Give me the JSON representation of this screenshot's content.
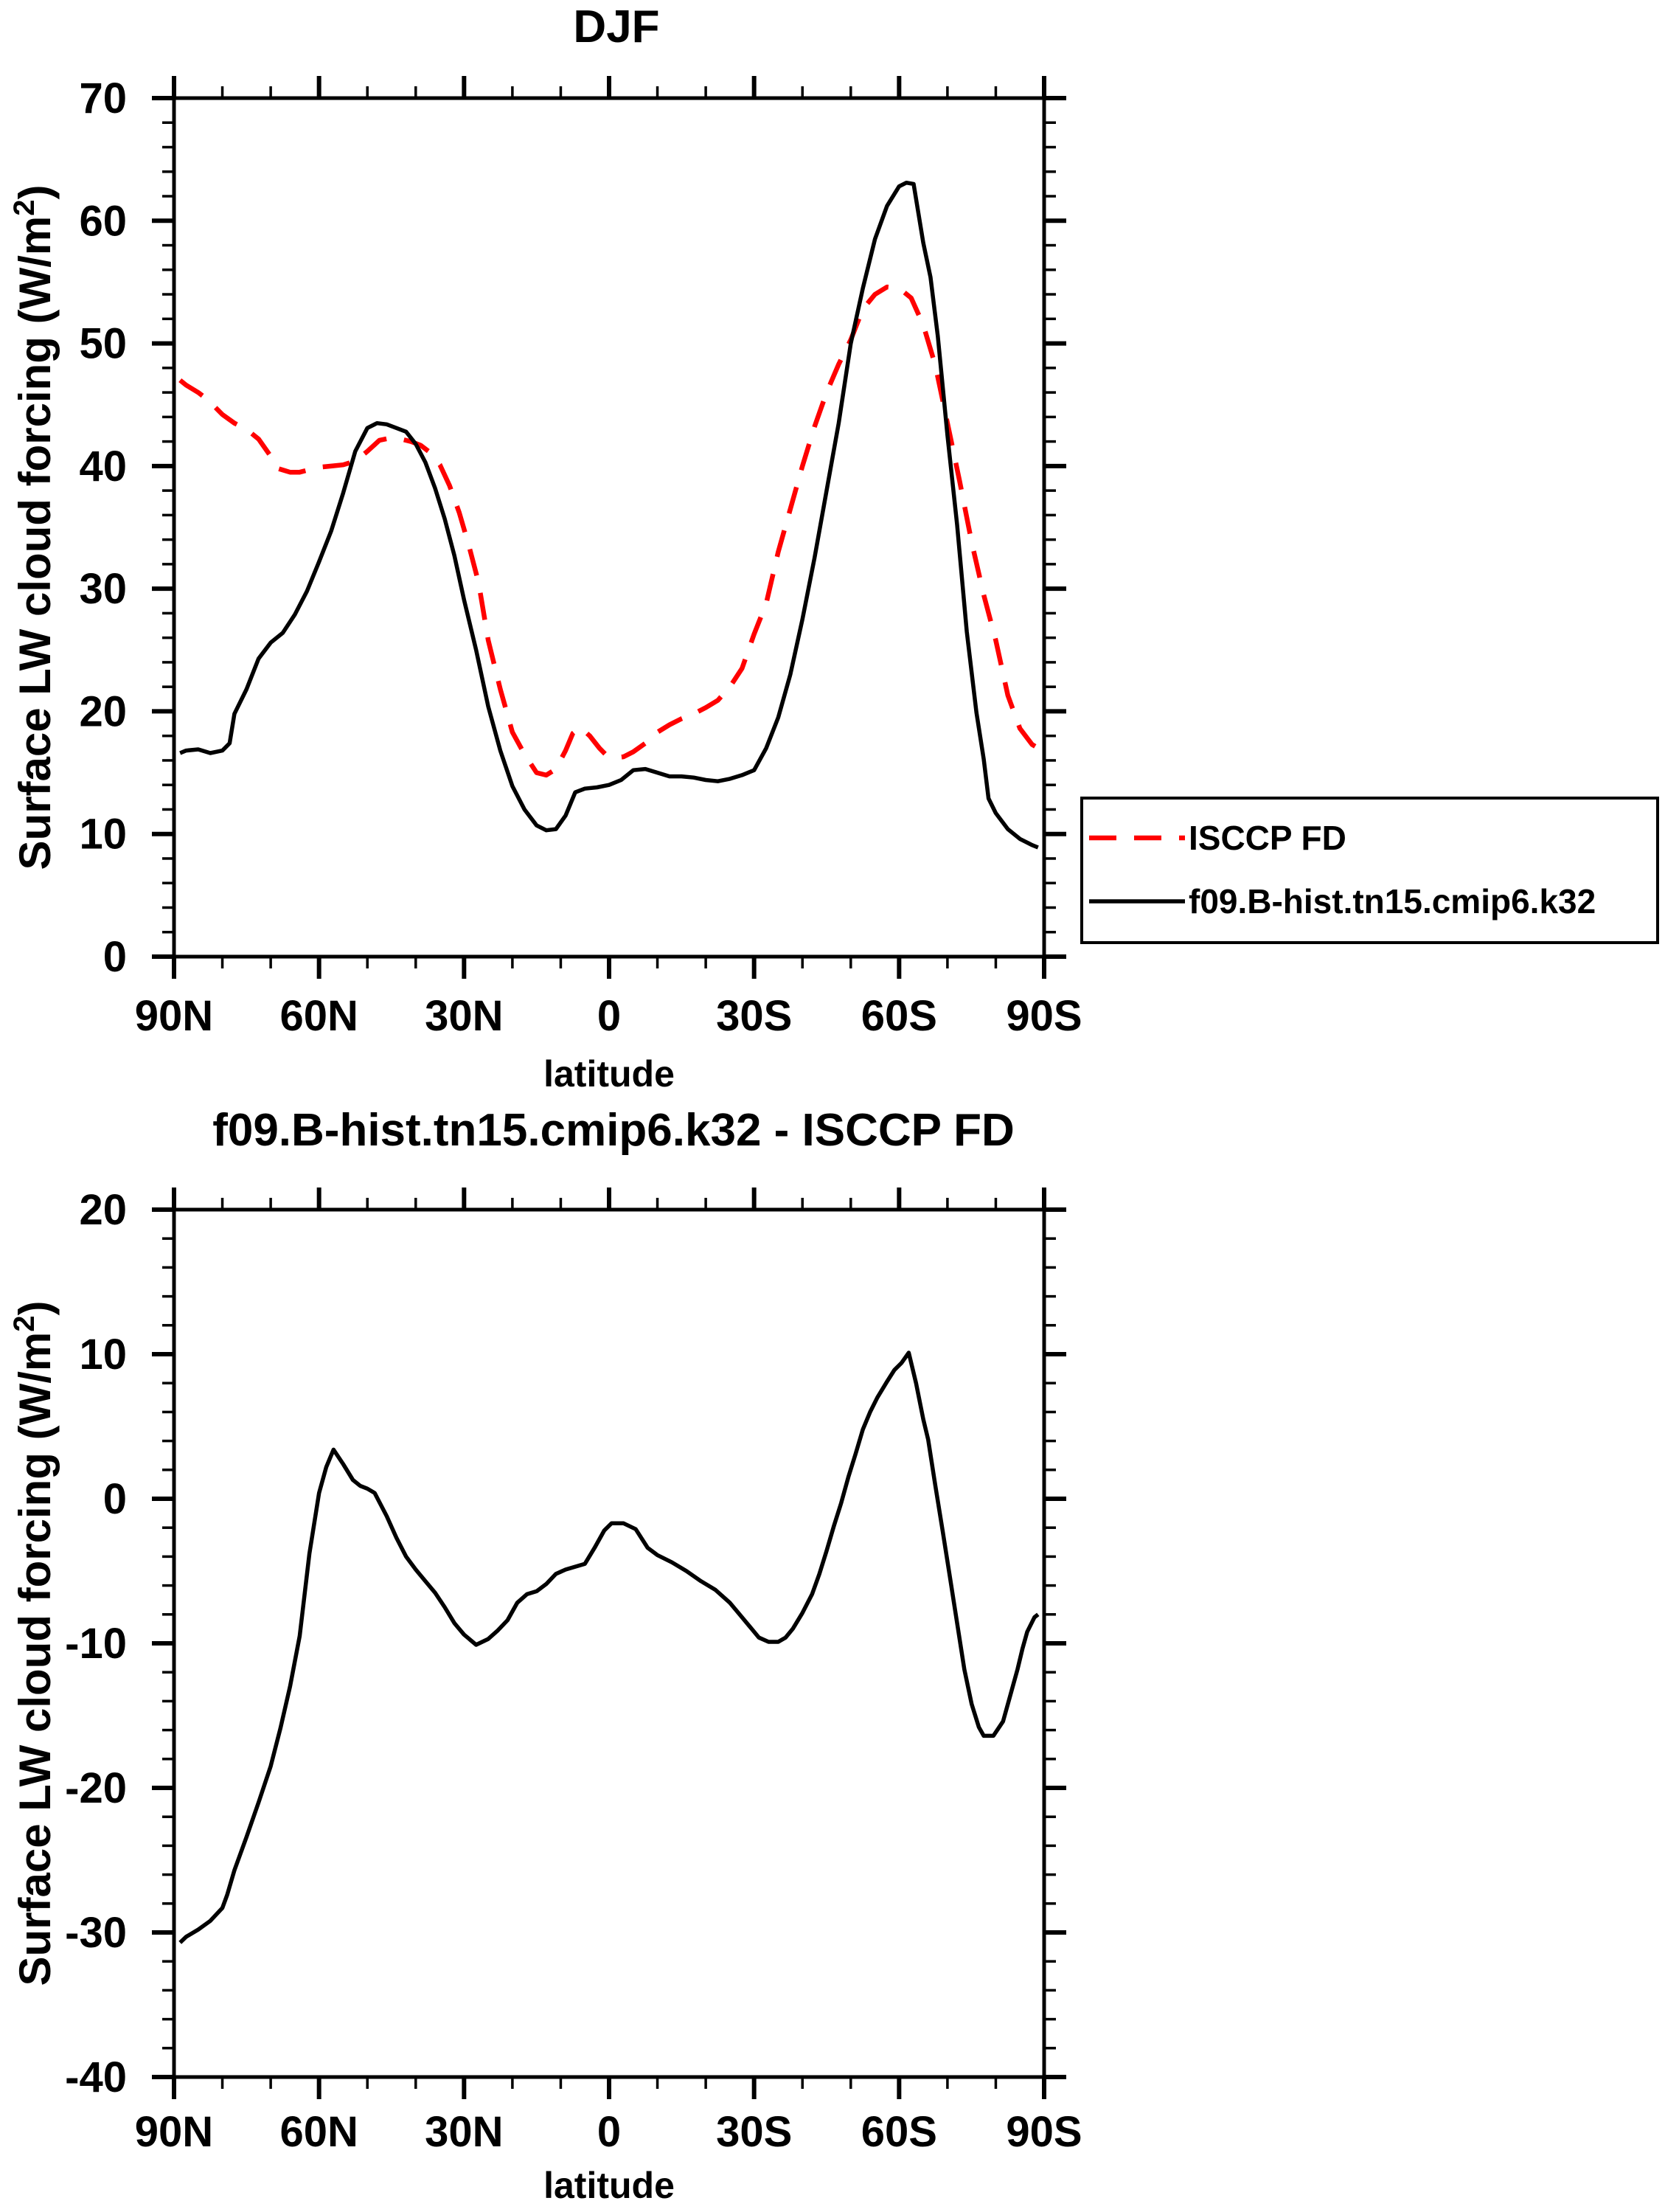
{
  "colors": {
    "background": "#ffffff",
    "frame": "#000000",
    "isccp_red": "#ff0000",
    "model_black": "#000000"
  },
  "top_chart": {
    "title": "DJF",
    "xlabel": "latitude",
    "ylabel_prefix": "Surface LW cloud forcing (W/m",
    "ylabel_sup": "2",
    "ylabel_suffix": ")",
    "x_tick_labels": [
      "90N",
      "60N",
      "30N",
      "0",
      "30S",
      "60S",
      "90S"
    ],
    "y_tick_labels": [
      "0",
      "10",
      "20",
      "30",
      "40",
      "50",
      "60",
      "70"
    ]
  },
  "bottom_chart": {
    "title": "f09.B-hist.tn15.cmip6.k32 - ISCCP FD",
    "xlabel": "latitude",
    "ylabel_prefix": "Surface LW cloud forcing (W/m",
    "ylabel_sup": "2",
    "ylabel_suffix": ")",
    "x_tick_labels": [
      "90N",
      "60N",
      "30N",
      "0",
      "30S",
      "60S",
      "90S"
    ],
    "y_tick_labels": [
      "20",
      "10",
      "0",
      "-10",
      "-20",
      "-30",
      "-40"
    ]
  },
  "chart_data": [
    {
      "type": "line",
      "title": "DJF",
      "xlabel": "latitude",
      "ylabel": "Surface LW cloud forcing (W/m2)",
      "x_units": "degrees latitude (positive = North, negative = South)",
      "xlim": [
        90,
        -90
      ],
      "ylim": [
        0,
        70
      ],
      "x_major_ticks": [
        90,
        60,
        30,
        0,
        -30,
        -60,
        -90
      ],
      "x_minor_tick_step": 10,
      "y_major_tick_step": 10,
      "y_minor_tick_step": 2,
      "grid": false,
      "legend_position": "outside-right-middle",
      "series": [
        {
          "name": "ISCCP FD",
          "color": "#ff0000",
          "line_style": "dashed",
          "points": [
            [
              88.75,
              47.0
            ],
            [
              87.5,
              46.6
            ],
            [
              85,
              46.0
            ],
            [
              83,
              45.4
            ],
            [
              80,
              44.2
            ],
            [
              77.5,
              43.5
            ],
            [
              75,
              43.0
            ],
            [
              72.5,
              42.2
            ],
            [
              70,
              40.8
            ],
            [
              68.5,
              39.8
            ],
            [
              66,
              39.5
            ],
            [
              64,
              39.5
            ],
            [
              62,
              39.7
            ],
            [
              60,
              39.9
            ],
            [
              57.5,
              40.0
            ],
            [
              55,
              40.1
            ],
            [
              52.5,
              40.4
            ],
            [
              50,
              41.2
            ],
            [
              47.5,
              42.1
            ],
            [
              45,
              42.3
            ],
            [
              43,
              42.2
            ],
            [
              41,
              42.0
            ],
            [
              39,
              41.7
            ],
            [
              37,
              41.1
            ],
            [
              35,
              40.1
            ],
            [
              33,
              38.4
            ],
            [
              31,
              36.2
            ],
            [
              29,
              33.5
            ],
            [
              27,
              30.5
            ],
            [
              25,
              25.8
            ],
            [
              22.5,
              21.8
            ],
            [
              20,
              18.3
            ],
            [
              17.5,
              16.5
            ],
            [
              15,
              15.0
            ],
            [
              13,
              14.8
            ],
            [
              11,
              15.3
            ],
            [
              9,
              16.8
            ],
            [
              7.5,
              18.2
            ],
            [
              6,
              18.7
            ],
            [
              4,
              18.0
            ],
            [
              2,
              17.0
            ],
            [
              0.5,
              16.4
            ],
            [
              -1,
              16.2
            ],
            [
              -3,
              16.3
            ],
            [
              -5,
              16.7
            ],
            [
              -7.5,
              17.4
            ],
            [
              -10,
              18.3
            ],
            [
              -12.5,
              18.9
            ],
            [
              -15,
              19.4
            ],
            [
              -17.5,
              19.8
            ],
            [
              -20,
              20.3
            ],
            [
              -22.5,
              20.9
            ],
            [
              -25,
              22.0
            ],
            [
              -27.5,
              23.5
            ],
            [
              -30,
              26.3
            ],
            [
              -32.5,
              28.8
            ],
            [
              -35,
              33.0
            ],
            [
              -37.5,
              36.5
            ],
            [
              -40,
              40.0
            ],
            [
              -42.5,
              43.2
            ],
            [
              -45,
              46.0
            ],
            [
              -47.5,
              48.3
            ],
            [
              -50,
              50.3
            ],
            [
              -52.5,
              52.8
            ],
            [
              -55,
              54.0
            ],
            [
              -57.5,
              54.6
            ],
            [
              -60,
              54.5
            ],
            [
              -62.5,
              53.7
            ],
            [
              -65,
              51.5
            ],
            [
              -67.5,
              48.2
            ],
            [
              -70,
              43.5
            ],
            [
              -72.5,
              38.8
            ],
            [
              -75,
              33.8
            ],
            [
              -77.5,
              29.5
            ],
            [
              -80,
              25.8
            ],
            [
              -82.5,
              21.3
            ],
            [
              -85,
              18.6
            ],
            [
              -87.5,
              17.3
            ],
            [
              -88.75,
              17.0
            ]
          ]
        },
        {
          "name": "f09.B-hist.tn15.cmip6.k32",
          "color": "#000000",
          "line_style": "solid",
          "points": [
            [
              88.75,
              16.6
            ],
            [
              87.5,
              16.8
            ],
            [
              85,
              16.9
            ],
            [
              82.5,
              16.6
            ],
            [
              80,
              16.8
            ],
            [
              78.5,
              17.4
            ],
            [
              77.5,
              19.8
            ],
            [
              75,
              21.8
            ],
            [
              72.5,
              24.3
            ],
            [
              70,
              25.6
            ],
            [
              67.5,
              26.4
            ],
            [
              65,
              27.9
            ],
            [
              62.5,
              29.8
            ],
            [
              60,
              32.2
            ],
            [
              57.5,
              34.7
            ],
            [
              55,
              37.8
            ],
            [
              52.5,
              41.2
            ],
            [
              50,
              43.1
            ],
            [
              48,
              43.5
            ],
            [
              46,
              43.4
            ],
            [
              44,
              43.1
            ],
            [
              42,
              42.8
            ],
            [
              40,
              41.8
            ],
            [
              38,
              40.3
            ],
            [
              36,
              38.2
            ],
            [
              34,
              35.7
            ],
            [
              32,
              32.7
            ],
            [
              30,
              29.1
            ],
            [
              27.5,
              25.0
            ],
            [
              25,
              20.4
            ],
            [
              22.5,
              16.8
            ],
            [
              20,
              13.9
            ],
            [
              17.5,
              12.0
            ],
            [
              15,
              10.7
            ],
            [
              13,
              10.3
            ],
            [
              11,
              10.4
            ],
            [
              9,
              11.5
            ],
            [
              7,
              13.4
            ],
            [
              5,
              13.7
            ],
            [
              2.5,
              13.8
            ],
            [
              0,
              14.0
            ],
            [
              -2.5,
              14.4
            ],
            [
              -5,
              15.2
            ],
            [
              -7.5,
              15.3
            ],
            [
              -10,
              15.0
            ],
            [
              -12.5,
              14.7
            ],
            [
              -15,
              14.7
            ],
            [
              -17.5,
              14.6
            ],
            [
              -20,
              14.4
            ],
            [
              -22.5,
              14.3
            ],
            [
              -25,
              14.5
            ],
            [
              -27.5,
              14.8
            ],
            [
              -30,
              15.2
            ],
            [
              -32.5,
              17.0
            ],
            [
              -35,
              19.5
            ],
            [
              -37.5,
              23.0
            ],
            [
              -40,
              27.5
            ],
            [
              -42.5,
              32.5
            ],
            [
              -45,
              38.0
            ],
            [
              -47.5,
              43.5
            ],
            [
              -50,
              50.0
            ],
            [
              -52.5,
              54.5
            ],
            [
              -55,
              58.5
            ],
            [
              -57.5,
              61.2
            ],
            [
              -60,
              62.8
            ],
            [
              -61.5,
              63.1
            ],
            [
              -63,
              63.0
            ],
            [
              -65,
              58.2
            ],
            [
              -66.5,
              55.4
            ],
            [
              -68,
              50.6
            ],
            [
              -70,
              42.5
            ],
            [
              -72,
              35.2
            ],
            [
              -74,
              26.5
            ],
            [
              -76,
              19.9
            ],
            [
              -77.5,
              16.1
            ],
            [
              -78.5,
              12.9
            ],
            [
              -80,
              11.7
            ],
            [
              -82.5,
              10.4
            ],
            [
              -85,
              9.6
            ],
            [
              -87.5,
              9.1
            ],
            [
              -88.75,
              8.9
            ]
          ]
        }
      ]
    },
    {
      "type": "line",
      "title": "f09.B-hist.tn15.cmip6.k32 - ISCCP FD",
      "xlabel": "latitude",
      "ylabel": "Surface LW cloud forcing (W/m2)",
      "x_units": "degrees latitude (positive = North, negative = South)",
      "xlim": [
        90,
        -90
      ],
      "ylim": [
        -40,
        20
      ],
      "x_major_ticks": [
        90,
        60,
        30,
        0,
        -30,
        -60,
        -90
      ],
      "x_minor_tick_step": 10,
      "y_major_tick_step": 10,
      "y_minor_tick_step": 2,
      "grid": false,
      "legend_position": "none",
      "series": [
        {
          "name": "f09.B-hist.tn15.cmip6.k32 minus ISCCP FD",
          "color": "#000000",
          "line_style": "solid",
          "points": [
            [
              88.75,
              -30.7
            ],
            [
              87.5,
              -30.3
            ],
            [
              85,
              -29.8
            ],
            [
              82.5,
              -29.2
            ],
            [
              80,
              -28.3
            ],
            [
              79,
              -27.4
            ],
            [
              77.5,
              -25.7
            ],
            [
              75,
              -23.4
            ],
            [
              72.5,
              -21.0
            ],
            [
              70,
              -18.5
            ],
            [
              68,
              -15.9
            ],
            [
              66,
              -13.0
            ],
            [
              64,
              -9.5
            ],
            [
              62,
              -3.8
            ],
            [
              60,
              0.4
            ],
            [
              58.5,
              2.2
            ],
            [
              57,
              3.4
            ],
            [
              55,
              2.4
            ],
            [
              53,
              1.3
            ],
            [
              51.5,
              0.9
            ],
            [
              50,
              0.7
            ],
            [
              48.5,
              0.4
            ],
            [
              46,
              -1.2
            ],
            [
              44,
              -2.7
            ],
            [
              42,
              -4.0
            ],
            [
              40,
              -4.9
            ],
            [
              38,
              -5.7
            ],
            [
              36,
              -6.5
            ],
            [
              34,
              -7.5
            ],
            [
              32,
              -8.6
            ],
            [
              30,
              -9.4
            ],
            [
              27.5,
              -10.1
            ],
            [
              25,
              -9.7
            ],
            [
              23,
              -9.1
            ],
            [
              21,
              -8.4
            ],
            [
              19,
              -7.2
            ],
            [
              17,
              -6.6
            ],
            [
              15,
              -6.4
            ],
            [
              13,
              -5.9
            ],
            [
              11,
              -5.2
            ],
            [
              9,
              -4.9
            ],
            [
              7,
              -4.7
            ],
            [
              5,
              -4.5
            ],
            [
              3,
              -3.4
            ],
            [
              1,
              -2.2
            ],
            [
              -0.5,
              -1.7
            ],
            [
              -3,
              -1.7
            ],
            [
              -5.5,
              -2.1
            ],
            [
              -8,
              -3.4
            ],
            [
              -10,
              -3.9
            ],
            [
              -13,
              -4.4
            ],
            [
              -16,
              -5.0
            ],
            [
              -19,
              -5.7
            ],
            [
              -22,
              -6.3
            ],
            [
              -25,
              -7.2
            ],
            [
              -27,
              -8.0
            ],
            [
              -29.5,
              -9.0
            ],
            [
              -31,
              -9.6
            ],
            [
              -33,
              -9.9
            ],
            [
              -35,
              -9.9
            ],
            [
              -36.5,
              -9.6
            ],
            [
              -38,
              -9.0
            ],
            [
              -40,
              -7.9
            ],
            [
              -42,
              -6.6
            ],
            [
              -43.5,
              -5.2
            ],
            [
              -45,
              -3.6
            ],
            [
              -46.5,
              -1.9
            ],
            [
              -48,
              -0.3
            ],
            [
              -49.5,
              1.5
            ],
            [
              -51,
              3.1
            ],
            [
              -52.5,
              4.8
            ],
            [
              -54,
              6.0
            ],
            [
              -55.5,
              7.0
            ],
            [
              -57.5,
              8.1
            ],
            [
              -59,
              8.9
            ],
            [
              -60.5,
              9.4
            ],
            [
              -62,
              10.1
            ],
            [
              -63.5,
              8.0
            ],
            [
              -65,
              5.5
            ],
            [
              -66,
              4.1
            ],
            [
              -67.5,
              0.9
            ],
            [
              -69,
              -2.2
            ],
            [
              -70.5,
              -5.4
            ],
            [
              -72,
              -8.6
            ],
            [
              -73.5,
              -11.8
            ],
            [
              -75,
              -14.2
            ],
            [
              -76.5,
              -15.8
            ],
            [
              -77.5,
              -16.4
            ],
            [
              -79.5,
              -16.4
            ],
            [
              -81.5,
              -15.4
            ],
            [
              -83,
              -13.6
            ],
            [
              -84.5,
              -11.8
            ],
            [
              -85.5,
              -10.4
            ],
            [
              -86.5,
              -9.2
            ],
            [
              -88,
              -8.2
            ],
            [
              -88.75,
              -8.0
            ]
          ]
        }
      ]
    }
  ]
}
